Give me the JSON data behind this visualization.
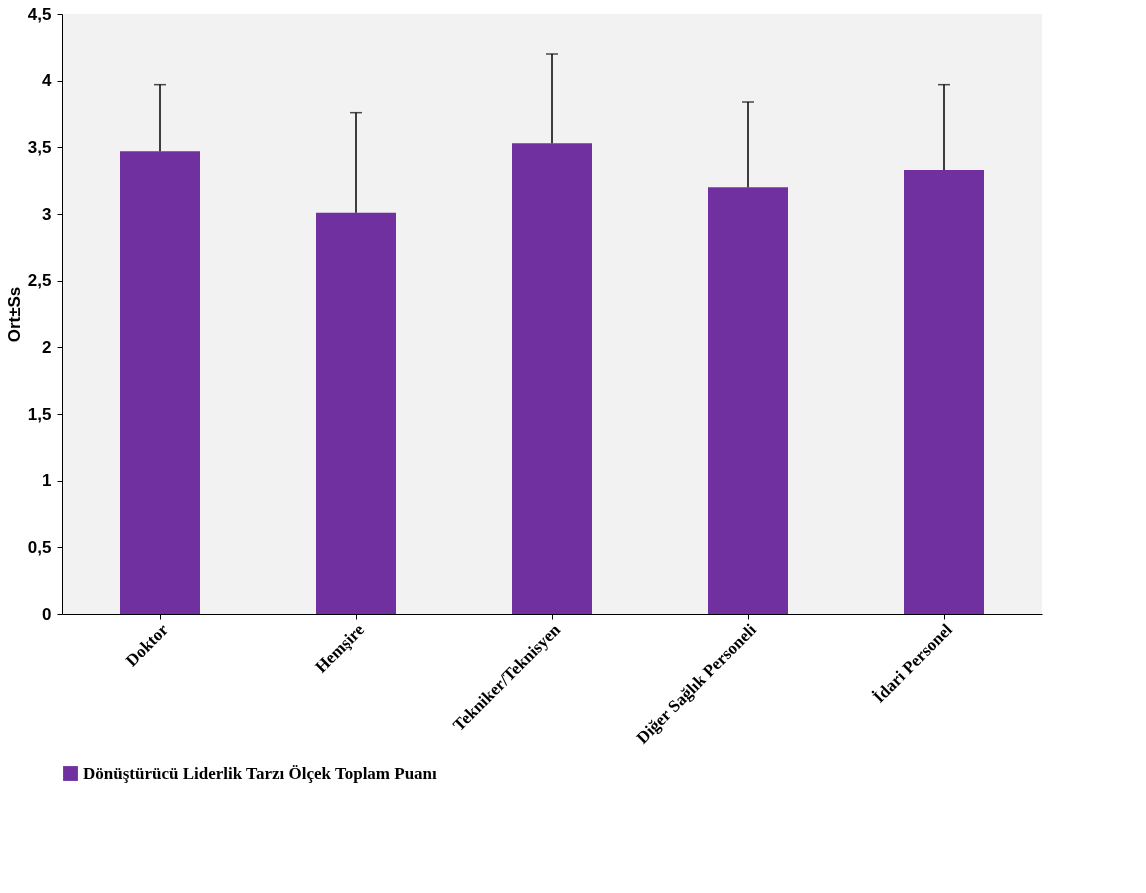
{
  "chart_data": {
    "type": "bar",
    "ylabel": "Ort±Ss",
    "categories": [
      "Doktor",
      "Hemşire",
      "Tekniker/Teknisyen",
      "Diğer Sağlık Personeli",
      "İdari Personel"
    ],
    "series": [
      {
        "name": "Dönüştürücü Liderlik Tarzı Ölçek Toplam Puanı",
        "color": "#7030a0",
        "values": [
          3.47,
          3.01,
          3.53,
          3.2,
          3.33
        ],
        "errors": [
          [
            3.47,
            3.97
          ],
          [
            3.01,
            3.76
          ],
          [
            3.53,
            4.2
          ],
          [
            3.2,
            3.84
          ],
          [
            3.33,
            3.97
          ]
        ]
      }
    ],
    "ylim": [
      0,
      4.5
    ],
    "yticks": [
      0,
      {
        "value": 0.5,
        "label": "0,5"
      },
      1,
      {
        "value": 1.5,
        "label": "1,5"
      },
      2,
      {
        "value": 2.5,
        "label": "2,5"
      },
      3,
      {
        "value": 3.5,
        "label": "3,5"
      },
      4,
      {
        "value": 4.5,
        "label": "4,5"
      }
    ],
    "grid": false,
    "legend": "bottom"
  }
}
